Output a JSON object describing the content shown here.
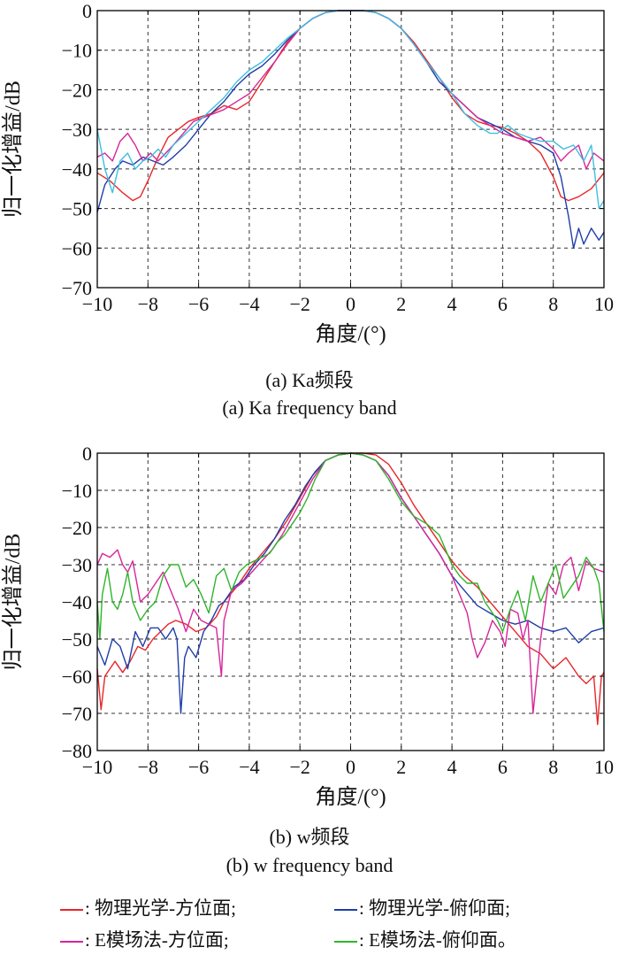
{
  "chart_data": [
    {
      "type": "line",
      "xlabel": "角度/(°)",
      "ylabel": "归一化增益/dB",
      "xlim": [
        -10,
        10
      ],
      "ylim": [
        -70,
        0
      ],
      "xticks": [
        "−10",
        "−8",
        "−6",
        "−4",
        "−2",
        "0",
        "2",
        "4",
        "6",
        "8",
        "10"
      ],
      "yticks": [
        "0",
        "−10",
        "−20",
        "−30",
        "−40",
        "−50",
        "−60",
        "−70"
      ],
      "grid": true,
      "caption_cn": "(a) Ka频段",
      "caption_en": "(a) Ka frequency band",
      "series": [
        {
          "color": "#e8262a",
          "x": [
            -10,
            -9.5,
            -9,
            -8.6,
            -8.3,
            -8,
            -7.6,
            -7.2,
            -6.8,
            -6.4,
            -6,
            -5.5,
            -5,
            -4.5,
            -4,
            -3.5,
            -3,
            -2.5,
            -2,
            -1.5,
            -1,
            -0.5,
            0,
            0.5,
            1,
            1.5,
            2,
            2.5,
            3,
            3.5,
            4,
            4.5,
            5,
            5.5,
            6,
            6.5,
            7,
            7.5,
            8,
            8.3,
            8.6,
            9,
            9.5,
            10
          ],
          "y": [
            -41,
            -43,
            -46,
            -48,
            -47,
            -43,
            -37,
            -32,
            -30,
            -28,
            -27,
            -26,
            -24,
            -25,
            -23,
            -18,
            -13,
            -8,
            -4.5,
            -2,
            -0.5,
            0,
            0,
            0,
            -0.5,
            -2,
            -4.5,
            -8,
            -12.5,
            -17,
            -22,
            -26,
            -28,
            -29,
            -29.5,
            -31,
            -33,
            -36,
            -42,
            -47,
            -48,
            -47,
            -45,
            -41
          ]
        },
        {
          "color": "#1f3ea8",
          "x": [
            -10,
            -9.7,
            -9.3,
            -9,
            -8.6,
            -8.2,
            -7.8,
            -7.4,
            -7,
            -6.5,
            -6,
            -5.5,
            -5,
            -4.5,
            -4,
            -3.5,
            -3,
            -2.5,
            -2,
            -1.5,
            -1,
            -0.5,
            0,
            0.5,
            1,
            1.5,
            2,
            2.5,
            3,
            3.5,
            4,
            4.5,
            5,
            5.5,
            6,
            6.5,
            7,
            7.5,
            8,
            8.3,
            8.6,
            8.8,
            9,
            9.2,
            9.5,
            9.8,
            10
          ],
          "y": [
            -51,
            -44,
            -40,
            -38,
            -39,
            -37,
            -38,
            -39,
            -37,
            -34,
            -30,
            -26,
            -23,
            -19,
            -16,
            -14,
            -11,
            -7.5,
            -4.5,
            -2,
            -0.5,
            0,
            0,
            0,
            -0.5,
            -2,
            -4.5,
            -8.5,
            -13,
            -18,
            -21,
            -24,
            -27,
            -28.5,
            -30,
            -32,
            -33,
            -34,
            -36,
            -42,
            -52,
            -60,
            -55,
            -59,
            -55,
            -58,
            -56
          ]
        },
        {
          "color": "#d6259a",
          "x": [
            -10,
            -9.7,
            -9.4,
            -9.1,
            -8.8,
            -8.5,
            -8.2,
            -7.9,
            -7.6,
            -7.3,
            -7,
            -6.6,
            -6.2,
            -5.8,
            -5.4,
            -5,
            -4.5,
            -4,
            -3.5,
            -3,
            -2.5,
            -2,
            -1.5,
            -1,
            -0.5,
            0,
            0.5,
            1,
            1.5,
            2,
            2.5,
            3,
            3.5,
            4,
            4.5,
            5,
            5.5,
            6,
            6.5,
            7,
            7.5,
            8,
            8.3,
            8.6,
            9,
            9.3,
            9.6,
            10
          ],
          "y": [
            -37,
            -36,
            -38,
            -33,
            -31,
            -34,
            -38,
            -36,
            -38,
            -36,
            -34,
            -31,
            -28,
            -27,
            -26,
            -25,
            -23,
            -21,
            -17,
            -13,
            -8.5,
            -4.5,
            -2,
            -0.5,
            0,
            0,
            0,
            -0.5,
            -2,
            -4.5,
            -8.5,
            -13,
            -17,
            -21,
            -24,
            -27,
            -29,
            -31,
            -32,
            -33,
            -32,
            -35,
            -38,
            -36,
            -34,
            -40,
            -36,
            -38
          ]
        },
        {
          "color": "#3fbfe0",
          "x": [
            -10,
            -9.7,
            -9.4,
            -9.1,
            -8.8,
            -8.5,
            -8.2,
            -7.9,
            -7.6,
            -7.3,
            -7,
            -6.5,
            -6,
            -5.5,
            -5,
            -4.5,
            -4,
            -3.5,
            -3,
            -2.5,
            -2,
            -1.5,
            -1,
            -0.5,
            0,
            0.5,
            1,
            1.5,
            2,
            2.5,
            3,
            3.5,
            4,
            4.5,
            5,
            5.5,
            5.8,
            6.2,
            6.6,
            7,
            7.5,
            8,
            8.4,
            8.8,
            9.2,
            9.5,
            9.8,
            10
          ],
          "y": [
            -30,
            -40,
            -46,
            -38,
            -36,
            -40,
            -38,
            -37,
            -35,
            -37,
            -34,
            -31,
            -28,
            -25,
            -22,
            -18,
            -15,
            -13,
            -10,
            -7,
            -4.5,
            -2,
            -0.5,
            0,
            0,
            0,
            -0.5,
            -2,
            -4.5,
            -8.5,
            -13,
            -17,
            -21,
            -26,
            -29,
            -31,
            -31,
            -29,
            -31,
            -32,
            -33,
            -33,
            -35,
            -34,
            -38,
            -34,
            -50,
            -48
          ]
        }
      ]
    },
    {
      "type": "line",
      "xlabel": "角度/(°)",
      "ylabel": "归一化增益/dB",
      "xlim": [
        -10,
        10
      ],
      "ylim": [
        -80,
        0
      ],
      "xticks": [
        "−10",
        "−8",
        "−6",
        "−4",
        "−2",
        "0",
        "2",
        "4",
        "6",
        "8",
        "10"
      ],
      "yticks": [
        "0",
        "−10",
        "−20",
        "−30",
        "−40",
        "−50",
        "−60",
        "−70",
        "−80"
      ],
      "grid": true,
      "caption_cn": "(b) w频段",
      "caption_en": "(b) w  frequency band",
      "series": [
        {
          "color": "#e8262a",
          "x": [
            -10,
            -9.85,
            -9.7,
            -9.5,
            -9.3,
            -9,
            -8.7,
            -8.4,
            -8.1,
            -7.8,
            -7.5,
            -7.2,
            -6.9,
            -6.5,
            -6.1,
            -5.7,
            -5.3,
            -5,
            -4.5,
            -4,
            -3.5,
            -3,
            -2.5,
            -2,
            -1.5,
            -1,
            -0.5,
            0,
            0.5,
            1,
            1.5,
            2,
            2.5,
            3,
            3.5,
            4,
            4.5,
            5,
            5.5,
            6,
            6.5,
            7,
            7.5,
            8,
            8.5,
            9,
            9.3,
            9.6,
            9.75,
            9.9,
            10
          ],
          "y": [
            -58,
            -69,
            -60,
            -58,
            -56,
            -59,
            -56,
            -52,
            -53,
            -50,
            -48,
            -46,
            -45,
            -46,
            -48,
            -47,
            -44,
            -40,
            -36,
            -31,
            -27,
            -23,
            -18,
            -12,
            -6,
            -2,
            -0.5,
            0,
            0,
            -0.5,
            -3,
            -8,
            -14,
            -19,
            -24,
            -29,
            -33,
            -36,
            -40,
            -44,
            -48,
            -52,
            -54,
            -58,
            -55,
            -60,
            -62,
            -60,
            -73,
            -60,
            -59
          ]
        },
        {
          "color": "#1f3ea8",
          "x": [
            -10,
            -9.7,
            -9.4,
            -9.1,
            -8.8,
            -8.5,
            -8.2,
            -7.9,
            -7.6,
            -7.3,
            -7,
            -6.85,
            -6.7,
            -6.55,
            -6.4,
            -6.1,
            -5.8,
            -5.5,
            -5.2,
            -5,
            -4.6,
            -4.2,
            -3.8,
            -3.4,
            -3,
            -2.6,
            -2.2,
            -1.8,
            -1.4,
            -1,
            -0.5,
            0,
            0.5,
            1,
            1.5,
            2,
            2.5,
            3,
            3.5,
            4,
            4.5,
            5,
            5.5,
            6,
            6.5,
            7,
            7.5,
            8,
            8.5,
            9,
            9.5,
            10
          ],
          "y": [
            -52,
            -57,
            -50,
            -52,
            -58,
            -48,
            -52,
            -47,
            -47,
            -50,
            -47,
            -50,
            -70,
            -55,
            -52,
            -55,
            -48,
            -45,
            -41,
            -40,
            -36,
            -34,
            -30,
            -27,
            -23,
            -18,
            -14,
            -9,
            -5,
            -2,
            -0.5,
            0,
            -0.5,
            -2,
            -6,
            -12,
            -17,
            -22,
            -27,
            -33,
            -37,
            -41,
            -43,
            -45,
            -46,
            -45,
            -47,
            -48,
            -47,
            -51,
            -48,
            -47
          ]
        },
        {
          "color": "#d6259a",
          "x": [
            -10,
            -9.8,
            -9.5,
            -9.2,
            -9,
            -8.8,
            -8.6,
            -8.3,
            -8,
            -7.7,
            -7.4,
            -7.1,
            -6.8,
            -6.5,
            -6.2,
            -5.9,
            -5.6,
            -5.3,
            -5.1,
            -5,
            -4.7,
            -4.3,
            -3.9,
            -3.5,
            -3.1,
            -2.7,
            -2.3,
            -1.9,
            -1.5,
            -1,
            -0.5,
            0,
            0.5,
            1,
            1.5,
            2,
            2.5,
            3,
            3.5,
            4,
            4.3,
            4.6,
            4.8,
            5,
            5.3,
            5.6,
            5.9,
            6.1,
            6.3,
            6.6,
            6.8,
            7,
            7.2,
            7.5,
            7.8,
            8.1,
            8.4,
            8.7,
            9,
            9.3,
            9.6,
            10
          ],
          "y": [
            -30,
            -27,
            -28,
            -26,
            -30,
            -32,
            -29,
            -40,
            -38,
            -35,
            -32,
            -37,
            -42,
            -48,
            -42,
            -45,
            -46,
            -47,
            -60,
            -45,
            -37,
            -35,
            -32,
            -29,
            -26,
            -22,
            -17,
            -12,
            -7,
            -2,
            -0.5,
            0,
            -0.5,
            -2,
            -6,
            -12,
            -17,
            -22,
            -27,
            -33,
            -38,
            -43,
            -50,
            -55,
            -51,
            -45,
            -48,
            -52,
            -42,
            -43,
            -50,
            -45,
            -70,
            -50,
            -35,
            -38,
            -30,
            -28,
            -37,
            -29,
            -31,
            -32
          ]
        },
        {
          "color": "#2fb52a",
          "x": [
            -10,
            -9.9,
            -9.8,
            -9.6,
            -9.4,
            -9.2,
            -9,
            -8.8,
            -8.6,
            -8.3,
            -8,
            -7.7,
            -7.4,
            -7.1,
            -6.8,
            -6.5,
            -6.2,
            -5.9,
            -5.6,
            -5.3,
            -5,
            -4.7,
            -4.4,
            -4.1,
            -3.8,
            -3.5,
            -3.2,
            -2.9,
            -2.6,
            -2.3,
            -2,
            -1.7,
            -1.4,
            -1,
            -0.5,
            0,
            0.5,
            1,
            1.5,
            2,
            2.5,
            3,
            3.5,
            4,
            4.3,
            4.6,
            5,
            5.3,
            5.6,
            5.8,
            6,
            6.3,
            6.6,
            6.9,
            7.2,
            7.5,
            7.8,
            8.1,
            8.4,
            8.7,
            9,
            9.3,
            9.6,
            9.8,
            10
          ],
          "y": [
            -40,
            -50,
            -38,
            -31,
            -40,
            -42,
            -38,
            -32,
            -40,
            -45,
            -42,
            -40,
            -33,
            -30,
            -30,
            -36,
            -34,
            -38,
            -43,
            -33,
            -31,
            -37,
            -32,
            -30,
            -29,
            -28,
            -27,
            -24,
            -22,
            -19,
            -16,
            -12,
            -7,
            -2,
            -0.5,
            0,
            -0.5,
            -2,
            -7,
            -13,
            -17,
            -19,
            -22,
            -30,
            -33,
            -35,
            -35,
            -40,
            -43,
            -45,
            -48,
            -42,
            -37,
            -45,
            -33,
            -40,
            -35,
            -30,
            -39,
            -36,
            -33,
            -28,
            -31,
            -35,
            -48
          ]
        }
      ]
    }
  ],
  "legend": {
    "row1": [
      {
        "text": ": 物理光学-方位面;",
        "color": "#e8262a"
      },
      {
        "text": ": 物理光学-俯仰面;",
        "color": "#1f3ea8"
      }
    ],
    "row2": [
      {
        "text": ": E模场法-方位面;",
        "color": "#d6259a"
      },
      {
        "text": ": E模场法-俯仰面。",
        "color": "#2fb52a"
      }
    ]
  }
}
